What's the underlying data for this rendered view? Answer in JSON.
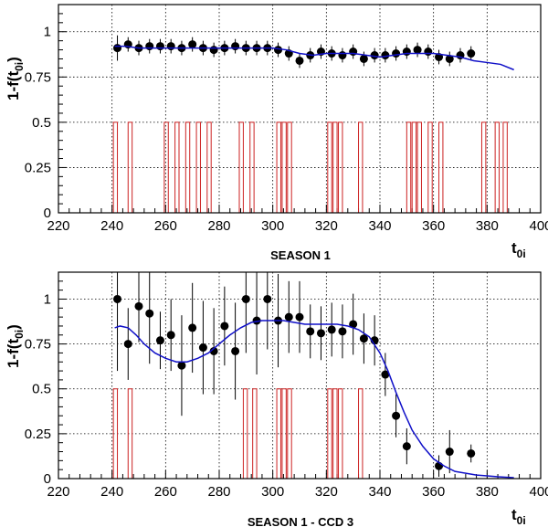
{
  "chart_data": [
    {
      "type": "scatter",
      "caption": "SEASON 1",
      "ylabel_main": "1-f(t",
      "ylabel_sub": "0i",
      "ylabel_close": ")",
      "xlabel_main": "t",
      "xlabel_sub": "0i",
      "xlim": [
        220,
        400
      ],
      "ylim": [
        0,
        1.15
      ],
      "x_ticks": [
        220,
        240,
        260,
        280,
        300,
        320,
        340,
        360,
        380,
        400
      ],
      "y_ticks": [
        0,
        0.25,
        0.5,
        0.75,
        1
      ],
      "y_tick_labels": [
        "0",
        "0.25",
        "0.5",
        "0.75",
        "1"
      ],
      "grid": true,
      "series": [
        {
          "kind": "points",
          "color": "#000000",
          "x": [
            242,
            246,
            250,
            254,
            258,
            262,
            266,
            270,
            274,
            278,
            282,
            286,
            290,
            294,
            298,
            302,
            306,
            310,
            314,
            318,
            322,
            326,
            330,
            334,
            338,
            342,
            346,
            350,
            354,
            358,
            362,
            366,
            370,
            374
          ],
          "y": [
            0.91,
            0.93,
            0.91,
            0.92,
            0.92,
            0.92,
            0.91,
            0.93,
            0.91,
            0.9,
            0.91,
            0.92,
            0.91,
            0.91,
            0.91,
            0.9,
            0.88,
            0.84,
            0.87,
            0.89,
            0.88,
            0.87,
            0.89,
            0.85,
            0.87,
            0.87,
            0.88,
            0.89,
            0.9,
            0.89,
            0.86,
            0.85,
            0.87,
            0.88
          ],
          "yerr": [
            0.07,
            0.04,
            0.04,
            0.04,
            0.04,
            0.04,
            0.04,
            0.04,
            0.04,
            0.04,
            0.04,
            0.04,
            0.04,
            0.04,
            0.04,
            0.04,
            0.04,
            0.04,
            0.04,
            0.04,
            0.04,
            0.04,
            0.04,
            0.04,
            0.04,
            0.04,
            0.04,
            0.04,
            0.04,
            0.04,
            0.04,
            0.04,
            0.04,
            0.04
          ]
        },
        {
          "kind": "curve",
          "color": "#1010c8",
          "x": [
            241,
            245,
            250,
            255,
            260,
            265,
            270,
            275,
            280,
            285,
            290,
            295,
            300,
            305,
            310,
            315,
            320,
            325,
            330,
            335,
            340,
            345,
            350,
            355,
            360,
            365,
            370,
            375,
            380,
            385,
            390
          ],
          "y": [
            0.92,
            0.92,
            0.91,
            0.91,
            0.91,
            0.91,
            0.91,
            0.91,
            0.91,
            0.91,
            0.91,
            0.91,
            0.91,
            0.9,
            0.88,
            0.87,
            0.88,
            0.88,
            0.88,
            0.87,
            0.86,
            0.87,
            0.88,
            0.88,
            0.88,
            0.87,
            0.86,
            0.84,
            0.83,
            0.82,
            0.79
          ]
        },
        {
          "kind": "hist",
          "color": "#cc2222",
          "height": 0.5,
          "edges": [
            [
              240.5,
              242
            ],
            [
              246,
              247.5
            ],
            [
              259.5,
              261
            ],
            [
              263.5,
              265
            ],
            [
              267.5,
              269
            ],
            [
              271.5,
              273
            ],
            [
              275.5,
              277
            ],
            [
              287.5,
              289
            ],
            [
              291.5,
              293
            ],
            [
              301.5,
              303
            ],
            [
              303.5,
              305
            ],
            [
              305.5,
              307
            ],
            [
              320.5,
              322
            ],
            [
              322.5,
              324
            ],
            [
              324.5,
              326
            ],
            [
              332,
              333.5
            ],
            [
              350,
              351.5
            ],
            [
              352,
              353.5
            ],
            [
              354,
              355.5
            ],
            [
              358,
              359.5
            ],
            [
              362,
              363.5
            ],
            [
              378,
              379.5
            ],
            [
              383,
              384.5
            ],
            [
              386,
              387.5
            ]
          ]
        }
      ]
    },
    {
      "type": "scatter",
      "caption": "SEASON 1 - CCD 3",
      "ylabel_main": "1-f(t",
      "ylabel_sub": "0i",
      "ylabel_close": ")",
      "xlabel_main": "t",
      "xlabel_sub": "0i",
      "xlim": [
        220,
        400
      ],
      "ylim": [
        0,
        1.15
      ],
      "x_ticks": [
        220,
        240,
        260,
        280,
        300,
        320,
        340,
        360,
        380,
        400
      ],
      "y_ticks": [
        0,
        0.25,
        0.5,
        0.75,
        1
      ],
      "y_tick_labels": [
        "0",
        "0.25",
        "0.5",
        "0.75",
        "1"
      ],
      "grid": true,
      "series": [
        {
          "kind": "points",
          "color": "#000000",
          "x": [
            242,
            246,
            250,
            254,
            258,
            262,
            266,
            270,
            274,
            278,
            282,
            286,
            290,
            294,
            298,
            302,
            306,
            310,
            314,
            318,
            322,
            326,
            330,
            334,
            338,
            342,
            346,
            350,
            362,
            366,
            374
          ],
          "y": [
            1.0,
            0.75,
            0.96,
            0.92,
            0.77,
            0.8,
            0.63,
            0.84,
            0.73,
            0.71,
            0.85,
            0.71,
            1.0,
            0.88,
            1.0,
            0.88,
            0.9,
            0.9,
            0.82,
            0.81,
            0.83,
            0.82,
            0.86,
            0.78,
            0.77,
            0.58,
            0.35,
            0.18,
            0.07,
            0.15,
            0.14
          ],
          "yerr": [
            0.4,
            0.2,
            0.2,
            0.28,
            0.16,
            0.2,
            0.28,
            0.25,
            0.26,
            0.24,
            0.22,
            0.27,
            0.3,
            0.3,
            0.28,
            0.26,
            0.2,
            0.2,
            0.15,
            0.15,
            0.15,
            0.15,
            0.17,
            0.14,
            0.14,
            0.12,
            0.12,
            0.1,
            0.06,
            0.12,
            0.05
          ]
        },
        {
          "kind": "curve",
          "color": "#1010c8",
          "x": [
            241,
            243,
            246,
            249,
            252,
            256,
            260,
            264,
            268,
            272,
            276,
            280,
            284,
            288,
            292,
            296,
            300,
            304,
            308,
            312,
            316,
            320,
            324,
            328,
            332,
            336,
            340,
            343,
            346,
            349,
            352,
            356,
            360,
            364,
            368,
            372,
            376,
            380,
            384,
            390
          ],
          "y": [
            0.84,
            0.85,
            0.84,
            0.8,
            0.75,
            0.7,
            0.67,
            0.65,
            0.65,
            0.67,
            0.7,
            0.75,
            0.8,
            0.84,
            0.87,
            0.88,
            0.88,
            0.88,
            0.87,
            0.86,
            0.86,
            0.86,
            0.86,
            0.85,
            0.83,
            0.79,
            0.7,
            0.6,
            0.48,
            0.37,
            0.27,
            0.18,
            0.11,
            0.07,
            0.04,
            0.03,
            0.02,
            0.015,
            0.01,
            0.005
          ]
        },
        {
          "kind": "hist",
          "color": "#cc2222",
          "height": 0.5,
          "edges": [
            [
              240.5,
              242
            ],
            [
              246,
              247.5
            ],
            [
              289,
              290.5
            ],
            [
              292.5,
              294
            ],
            [
              301.5,
              303
            ],
            [
              303.5,
              305
            ],
            [
              305.5,
              307
            ],
            [
              320.5,
              322
            ],
            [
              322.5,
              324
            ],
            [
              324.5,
              326
            ],
            [
              332,
              333.5
            ]
          ]
        }
      ]
    }
  ]
}
